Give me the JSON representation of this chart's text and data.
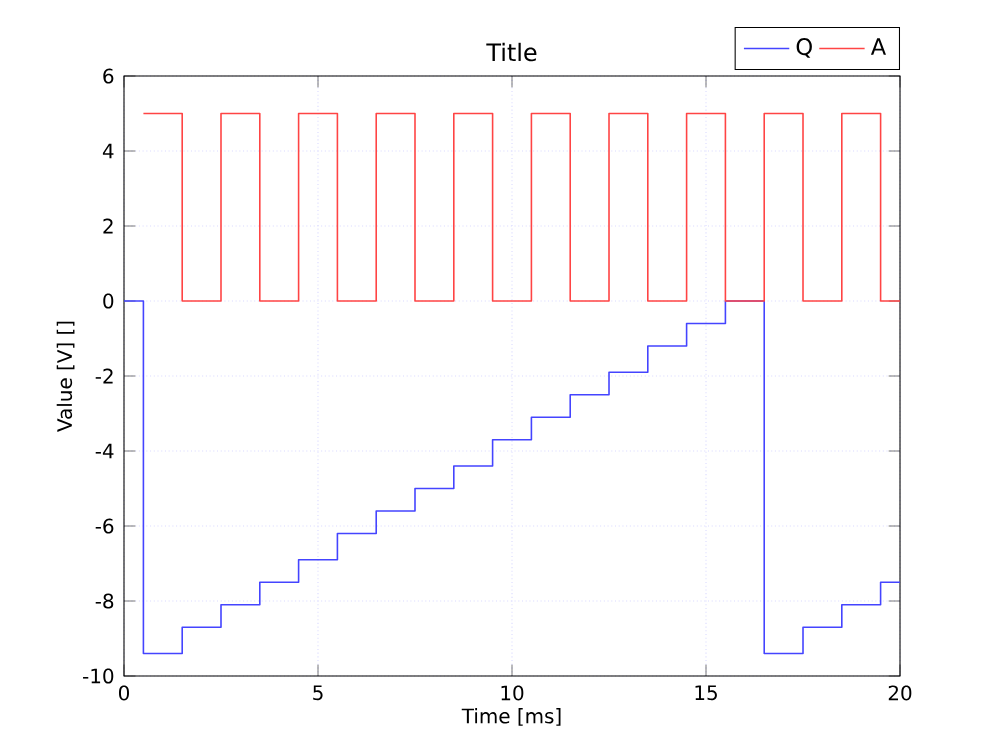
{
  "chart_data": {
    "type": "step",
    "title": "Title",
    "xlabel": "Time  [ms]",
    "ylabel": "Value [V] []",
    "xlim": [
      0,
      20
    ],
    "ylim": [
      -10,
      6
    ],
    "xticks": [
      0,
      5,
      10,
      15,
      20
    ],
    "yticks": [
      -10,
      -8,
      -6,
      -4,
      -2,
      0,
      2,
      4,
      6
    ],
    "grid": true,
    "legend": "top right",
    "series": [
      {
        "name": "Q",
        "color": "#4444ff",
        "x": [
          0,
          0.5,
          1.5,
          2.5,
          3.5,
          4.5,
          5.5,
          6.5,
          7.5,
          8.5,
          9.5,
          10.5,
          11.5,
          12.5,
          13.5,
          14.5,
          15.5,
          16.5,
          17.5,
          18.5,
          19.5,
          20
        ],
        "values": [
          0,
          -9.4,
          -8.7,
          -8.1,
          -7.5,
          -6.9,
          -6.2,
          -5.6,
          -5.0,
          -4.4,
          -3.7,
          -3.1,
          -2.5,
          -1.9,
          -1.2,
          -0.6,
          0,
          -9.4,
          -8.7,
          -8.1,
          -7.5,
          -7.5
        ]
      },
      {
        "name": "A",
        "color": "#ff4444",
        "x": [
          0.5,
          1.5,
          2.5,
          3.5,
          4.5,
          5.5,
          6.5,
          7.5,
          8.5,
          9.5,
          10.5,
          11.5,
          12.5,
          13.5,
          14.5,
          15.5,
          16.5,
          17.5,
          18.5,
          19.5,
          20
        ],
        "values": [
          5,
          0,
          5,
          0,
          5,
          0,
          5,
          0,
          5,
          0,
          5,
          0,
          5,
          0,
          5,
          0,
          5,
          0,
          5,
          0,
          0
        ]
      }
    ]
  }
}
